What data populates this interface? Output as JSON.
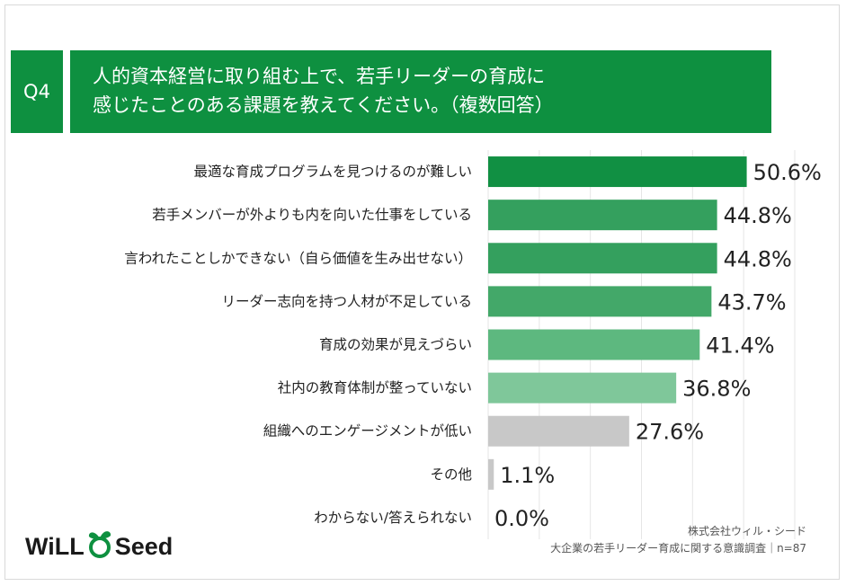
{
  "question": {
    "number": "Q4",
    "lines": [
      "人的資本経営に取り組む上で、若手リーダーの育成に",
      "感じたことのある課題を教えてください。（複数回答）"
    ]
  },
  "chart_data": {
    "type": "bar",
    "orientation": "horizontal",
    "categories": [
      "最適な育成プログラムを見つけるのが難しい",
      "若手メンバーが外よりも内を向いた仕事をしている",
      "言われたことしかできない（自ら価値を生み出せない）",
      "リーダー志向を持つ人材が不足している",
      "育成の効果が見えづらい",
      "社内の教育体制が整っていない",
      "組織へのエンゲージメントが低い",
      "その他",
      "わからない/答えられない"
    ],
    "values": [
      50.6,
      44.8,
      44.8,
      43.7,
      41.4,
      36.8,
      27.6,
      1.1,
      0.0
    ],
    "value_labels": [
      "50.6%",
      "44.8%",
      "44.8%",
      "43.7%",
      "41.4%",
      "36.8%",
      "27.6%",
      "1.1%",
      "0.0%"
    ],
    "colors": [
      "#119043",
      "#34a05e",
      "#34a05e",
      "#43a869",
      "#5db87f",
      "#7fc79a",
      "#c8c8c8",
      "#c8c8c8",
      "#c8c8c8"
    ],
    "xlim": [
      0,
      60
    ],
    "grid": true
  },
  "logo": {
    "left": "WiLL",
    "right": "Seed"
  },
  "source": {
    "company": "株式会社ウィル・シード",
    "survey": "大企業の若手リーダー育成に関する意識調査｜n=87"
  }
}
